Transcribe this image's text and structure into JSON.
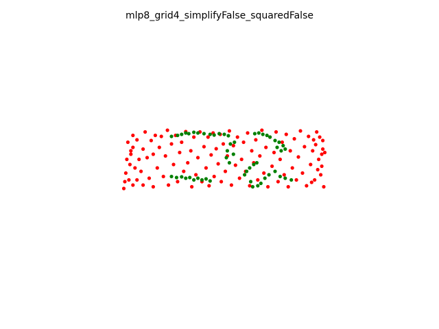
{
  "chart_data": {
    "type": "scatter",
    "title": "mlp8_grid4_simplifyFalse_squaredFalse",
    "xlabel": "",
    "ylabel": "",
    "axes_visible": false,
    "grid": false,
    "series": [
      {
        "color": "#ff0000",
        "points": [
          [
            -0.92,
            0.2
          ],
          [
            -0.95,
            0.55
          ],
          [
            -0.9,
            0.75
          ],
          [
            -0.93,
            -0.1
          ],
          [
            -0.97,
            -0.35
          ],
          [
            -0.9,
            -0.7
          ],
          [
            -0.86,
            0.62
          ],
          [
            -0.86,
            -0.55
          ],
          [
            -0.84,
            0.05
          ],
          [
            -0.82,
            -0.3
          ],
          [
            -0.8,
            0.35
          ],
          [
            -0.8,
            -0.7
          ],
          [
            -0.78,
            0.85
          ],
          [
            -0.76,
            0.1
          ],
          [
            -0.74,
            -0.5
          ],
          [
            -0.72,
            0.6
          ],
          [
            -0.7,
            -0.75
          ],
          [
            -0.7,
            0.2
          ],
          [
            -0.68,
            0.75
          ],
          [
            -0.66,
            -0.2
          ],
          [
            -0.64,
            0.4
          ],
          [
            -0.62,
            0.72
          ],
          [
            -0.6,
            -0.45
          ],
          [
            -0.58,
            0.15
          ],
          [
            -0.56,
            0.9
          ],
          [
            -0.55,
            -0.7
          ],
          [
            -0.52,
            0.5
          ],
          [
            -0.5,
            -0.1
          ],
          [
            -0.48,
            0.75
          ],
          [
            -0.46,
            -0.6
          ],
          [
            -0.44,
            0.25
          ],
          [
            -0.42,
            0.55
          ],
          [
            -0.4,
            -0.3
          ],
          [
            -0.38,
            0.86
          ],
          [
            -0.36,
            -0.05
          ],
          [
            -0.33,
            0.3
          ],
          [
            -0.32,
            -0.75
          ],
          [
            -0.3,
            0.7
          ],
          [
            -0.28,
            -0.4
          ],
          [
            -0.26,
            0.1
          ],
          [
            -0.24,
            0.85
          ],
          [
            -0.22,
            -0.6
          ],
          [
            -0.2,
            0.42
          ],
          [
            -0.18,
            -0.2
          ],
          [
            -0.16,
            0.7
          ],
          [
            -0.15,
            -0.72
          ],
          [
            -0.13,
            0.18
          ],
          [
            -0.11,
            0.82
          ],
          [
            -0.1,
            -0.45
          ],
          [
            -0.08,
            0.36
          ],
          [
            -0.06,
            -0.08
          ],
          [
            -0.04,
            0.78
          ],
          [
            -0.03,
            -0.6
          ],
          [
            -0.01,
            0.5
          ],
          [
            0.01,
            -0.3
          ],
          [
            0.03,
            0.15
          ],
          [
            0.05,
            0.88
          ],
          [
            0.07,
            -0.7
          ],
          [
            0.09,
            0.45
          ],
          [
            0.11,
            -0.12
          ],
          [
            0.13,
            0.7
          ],
          [
            0.15,
            -0.5
          ],
          [
            0.17,
            0.05
          ],
          [
            0.19,
            0.55
          ],
          [
            0.21,
            -0.3
          ],
          [
            0.23,
            0.82
          ],
          [
            0.25,
            -0.72
          ],
          [
            0.27,
            0.3
          ],
          [
            0.29,
            -0.05
          ],
          [
            0.31,
            0.62
          ],
          [
            0.33,
            -0.55
          ],
          [
            0.35,
            0.15
          ],
          [
            0.37,
            0.9
          ],
          [
            0.39,
            -0.35
          ],
          [
            0.41,
            0.4
          ],
          [
            0.43,
            -0.75
          ],
          [
            0.45,
            0.7
          ],
          [
            0.47,
            -0.15
          ],
          [
            0.49,
            0.25
          ],
          [
            0.51,
            0.85
          ],
          [
            0.53,
            -0.6
          ],
          [
            0.55,
            0.05
          ],
          [
            0.57,
            0.55
          ],
          [
            0.59,
            -0.4
          ],
          [
            0.61,
            0.78
          ],
          [
            0.63,
            -0.75
          ],
          [
            0.65,
            0.3
          ],
          [
            0.67,
            -0.2
          ],
          [
            0.69,
            0.65
          ],
          [
            0.71,
            -0.55
          ],
          [
            0.73,
            0.12
          ],
          [
            0.75,
            0.88
          ],
          [
            0.77,
            -0.35
          ],
          [
            0.79,
            0.42
          ],
          [
            0.81,
            -0.72
          ],
          [
            0.83,
            0.72
          ],
          [
            0.85,
            -0.1
          ],
          [
            0.87,
            0.3
          ],
          [
            0.89,
            -0.55
          ],
          [
            0.91,
            0.85
          ],
          [
            0.93,
            0.05
          ],
          [
            0.95,
            -0.4
          ],
          [
            0.97,
            0.6
          ],
          [
            0.98,
            -0.75
          ],
          [
            0.96,
            0.2
          ],
          [
            0.92,
            -0.25
          ],
          [
            0.88,
            0.62
          ],
          [
            0.86,
            -0.62
          ],
          [
            -0.88,
            -0.2
          ],
          [
            -0.96,
            0.05
          ],
          [
            -0.94,
            -0.55
          ],
          [
            -0.9,
            0.4
          ],
          [
            -0.99,
            -0.8
          ],
          [
            0.99,
            0.25
          ],
          [
            0.97,
            0.35
          ],
          [
            0.94,
            0.7
          ],
          [
            0.9,
            0.48
          ],
          [
            -0.92,
            0.3
          ],
          [
            -0.98,
            -0.6
          ],
          [
            0.96,
            -0.15
          ]
        ]
      },
      {
        "color": "#008000",
        "points": [
          [
            -0.52,
            0.72
          ],
          [
            -0.46,
            0.75
          ],
          [
            -0.42,
            0.78
          ],
          [
            -0.38,
            0.82
          ],
          [
            -0.35,
            0.8
          ],
          [
            -0.3,
            0.84
          ],
          [
            -0.26,
            0.82
          ],
          [
            -0.2,
            0.8
          ],
          [
            -0.14,
            0.78
          ],
          [
            -0.1,
            0.76
          ],
          [
            -0.05,
            0.8
          ],
          [
            0.0,
            0.78
          ],
          [
            0.04,
            0.74
          ],
          [
            -0.52,
            -0.45
          ],
          [
            -0.47,
            -0.48
          ],
          [
            -0.42,
            -0.46
          ],
          [
            -0.38,
            -0.5
          ],
          [
            -0.34,
            -0.48
          ],
          [
            -0.3,
            -0.55
          ],
          [
            -0.26,
            -0.5
          ],
          [
            -0.22,
            -0.55
          ],
          [
            -0.18,
            -0.52
          ],
          [
            -0.14,
            -0.58
          ],
          [
            0.06,
            0.5
          ],
          [
            0.03,
            0.3
          ],
          [
            0.02,
            0.1
          ],
          [
            0.05,
            -0.05
          ],
          [
            0.09,
            0.2
          ],
          [
            0.1,
            0.55
          ],
          [
            0.2,
            -0.4
          ],
          [
            0.22,
            -0.3
          ],
          [
            0.25,
            -0.2
          ],
          [
            0.29,
            -0.1
          ],
          [
            0.32,
            -0.05
          ],
          [
            0.26,
            -0.6
          ],
          [
            0.28,
            -0.75
          ],
          [
            0.33,
            -0.72
          ],
          [
            0.36,
            -0.65
          ],
          [
            0.4,
            -0.5
          ],
          [
            0.44,
            -0.4
          ],
          [
            0.5,
            -0.3
          ],
          [
            0.55,
            -0.45
          ],
          [
            0.6,
            -0.5
          ],
          [
            0.66,
            -0.55
          ],
          [
            0.3,
            0.8
          ],
          [
            0.34,
            0.82
          ],
          [
            0.38,
            0.78
          ],
          [
            0.42,
            0.75
          ],
          [
            0.45,
            0.7
          ],
          [
            0.5,
            0.6
          ],
          [
            0.54,
            0.55
          ],
          [
            0.58,
            0.45
          ],
          [
            0.6,
            0.35
          ],
          [
            0.56,
            0.3
          ],
          [
            0.52,
            0.4
          ]
        ]
      }
    ]
  }
}
